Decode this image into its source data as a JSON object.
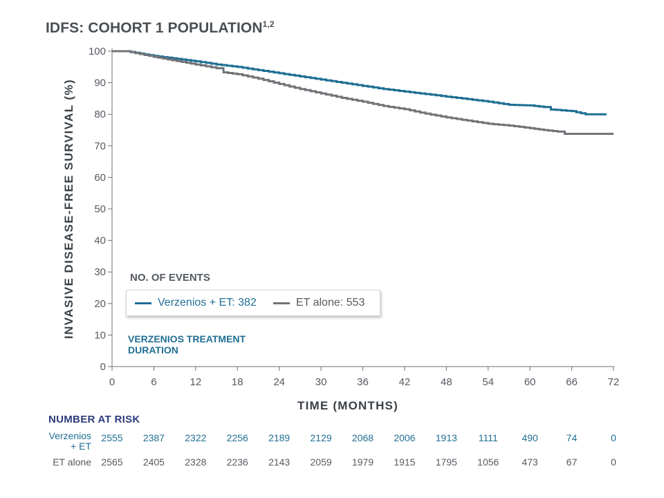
{
  "title": "IDFS: COHORT 1 POPULATION",
  "title_superscript": "1,2",
  "chart_data": {
    "type": "line",
    "title": "IDFS: COHORT 1 POPULATION",
    "xlabel": "TIME (MONTHS)",
    "ylabel": "INVASIVE DISEASE-FREE SURVIVAL (%)",
    "xlim": [
      0,
      72
    ],
    "ylim": [
      0,
      100
    ],
    "x_ticks": [
      0,
      6,
      12,
      18,
      24,
      30,
      36,
      42,
      48,
      54,
      60,
      66,
      72
    ],
    "y_ticks": [
      0,
      10,
      20,
      30,
      40,
      50,
      60,
      70,
      80,
      90,
      100
    ],
    "series": [
      {
        "name": "Verzenios + ET",
        "color": "#1f6e94",
        "x": [
          0,
          2,
          6,
          12,
          15,
          18,
          21,
          24,
          27,
          30,
          33,
          36,
          39,
          42,
          45,
          48,
          51,
          54,
          57,
          60,
          62,
          63,
          66,
          68,
          71
        ],
        "y": [
          100,
          100,
          98.5,
          96.8,
          95.8,
          95,
          94,
          93,
          92,
          91,
          90,
          89,
          88,
          87.2,
          86.4,
          85.6,
          84.8,
          84,
          83,
          82.8,
          82.3,
          81.5,
          81,
          80,
          80
        ]
      },
      {
        "name": "ET alone",
        "color": "#707478",
        "x": [
          0,
          2,
          6,
          12,
          15,
          16,
          18,
          21,
          24,
          27,
          30,
          33,
          36,
          39,
          42,
          45,
          48,
          51,
          54,
          57,
          60,
          62,
          64,
          65,
          68,
          72
        ],
        "y": [
          100,
          100,
          98.2,
          95.8,
          94.6,
          93.3,
          92.7,
          91.3,
          89.6,
          88,
          86.6,
          85.2,
          84,
          82.6,
          81.6,
          80.2,
          79,
          78,
          77,
          76.4,
          75.6,
          75,
          74.5,
          73.8,
          73.8,
          73.8
        ]
      }
    ],
    "events_title": "NO. OF EVENTS",
    "legend": [
      {
        "label": "Verzenios + ET: 382",
        "color": "#1f6e94"
      },
      {
        "label": "ET alone: 553",
        "color": "#707478"
      }
    ],
    "annotation": [
      "VERZENIOS TREATMENT",
      "DURATION"
    ]
  },
  "risk_table": {
    "title": "NUMBER AT RISK",
    "rows": [
      {
        "label_lines": [
          "Verzenios",
          "+ ET"
        ],
        "color": "#1f6e94",
        "values": [
          "2555",
          "2387",
          "2322",
          "2256",
          "2189",
          "2129",
          "2068",
          "2006",
          "1913",
          "1111",
          "490",
          "74",
          "0"
        ]
      },
      {
        "label_lines": [
          "ET alone"
        ],
        "color": "#54595f",
        "values": [
          "2565",
          "2405",
          "2328",
          "2236",
          "2143",
          "2059",
          "1979",
          "1915",
          "1795",
          "1056",
          "473",
          "67",
          "0"
        ]
      }
    ]
  }
}
